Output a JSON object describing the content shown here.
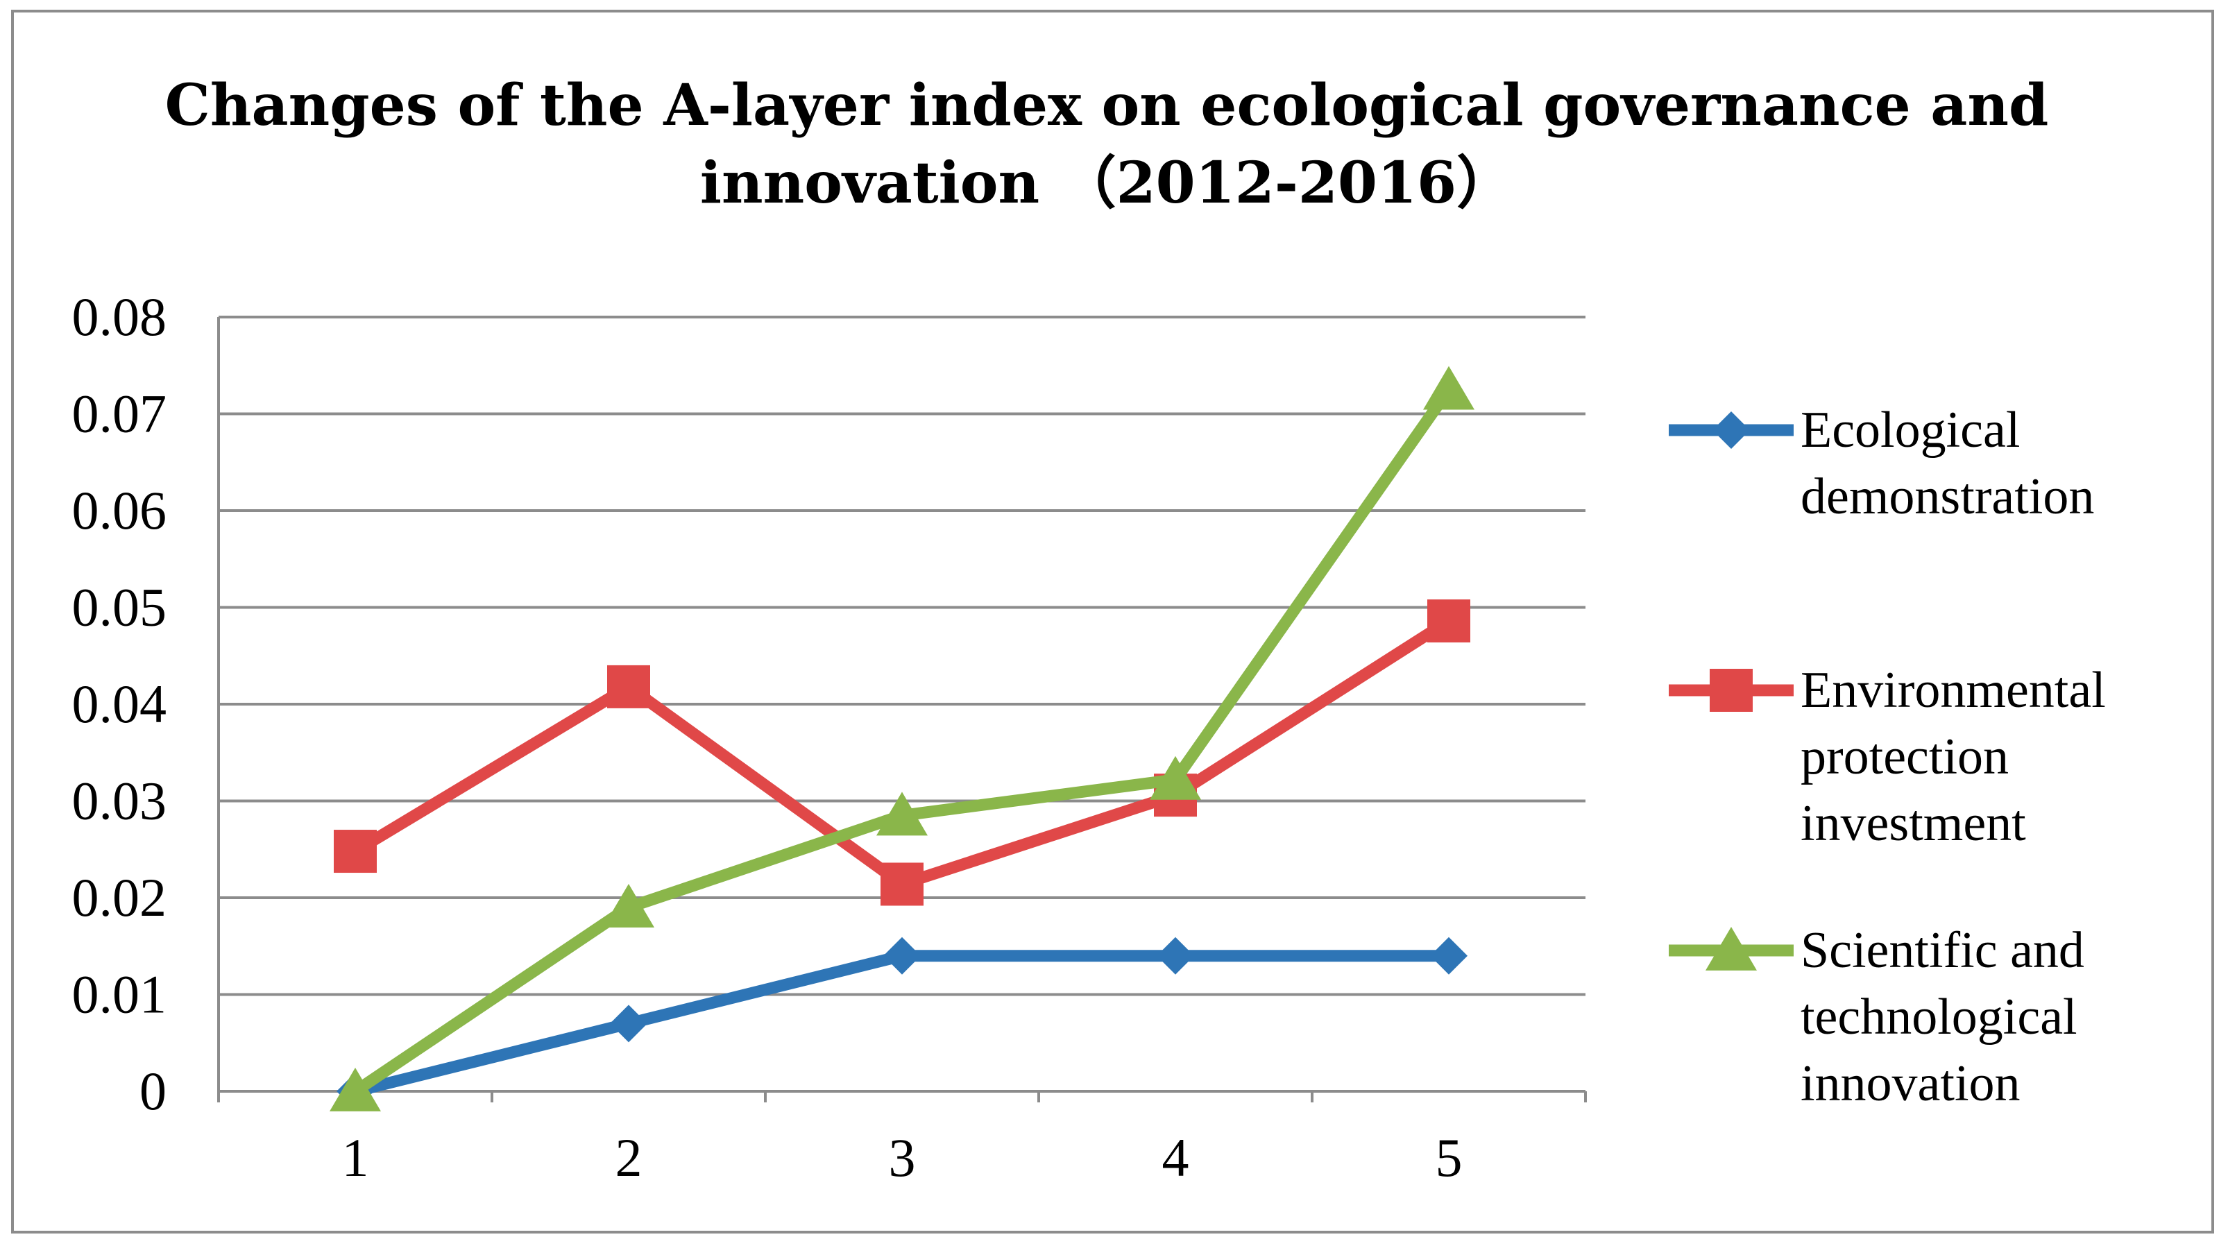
{
  "chart_data": {
    "type": "line",
    "title_lines": [
      "Changes of the A-layer index on ecological governance and",
      "innovation （2012-2016）"
    ],
    "xlabel": "",
    "ylabel": "",
    "categories": [
      "1",
      "2",
      "3",
      "4",
      "5"
    ],
    "ylim": [
      0,
      0.08
    ],
    "y_ticks": [
      "0",
      "0.01",
      "0.02",
      "0.03",
      "0.04",
      "0.05",
      "0.06",
      "0.07",
      "0.08"
    ],
    "grid": "horizontal",
    "legend_position": "right",
    "series": [
      {
        "name": "Ecological demonstration",
        "legend_lines": [
          "Ecological",
          "demonstration"
        ],
        "color": "#2e75b6",
        "marker": "diamond",
        "values": [
          0.0,
          0.007,
          0.014,
          0.014,
          0.014
        ]
      },
      {
        "name": "Environmental protection investment",
        "legend_lines": [
          "Environmental",
          "protection",
          "investment"
        ],
        "color": "#e04848",
        "marker": "square",
        "values": [
          0.0248,
          0.0418,
          0.0214,
          0.0306,
          0.0486
        ]
      },
      {
        "name": "Scientific and technological innovation",
        "legend_lines": [
          "Scientific and",
          "technological",
          "innovation"
        ],
        "color": "#8ab64a",
        "marker": "triangle",
        "values": [
          0.0,
          0.019,
          0.0285,
          0.0322,
          0.0725
        ]
      }
    ]
  }
}
